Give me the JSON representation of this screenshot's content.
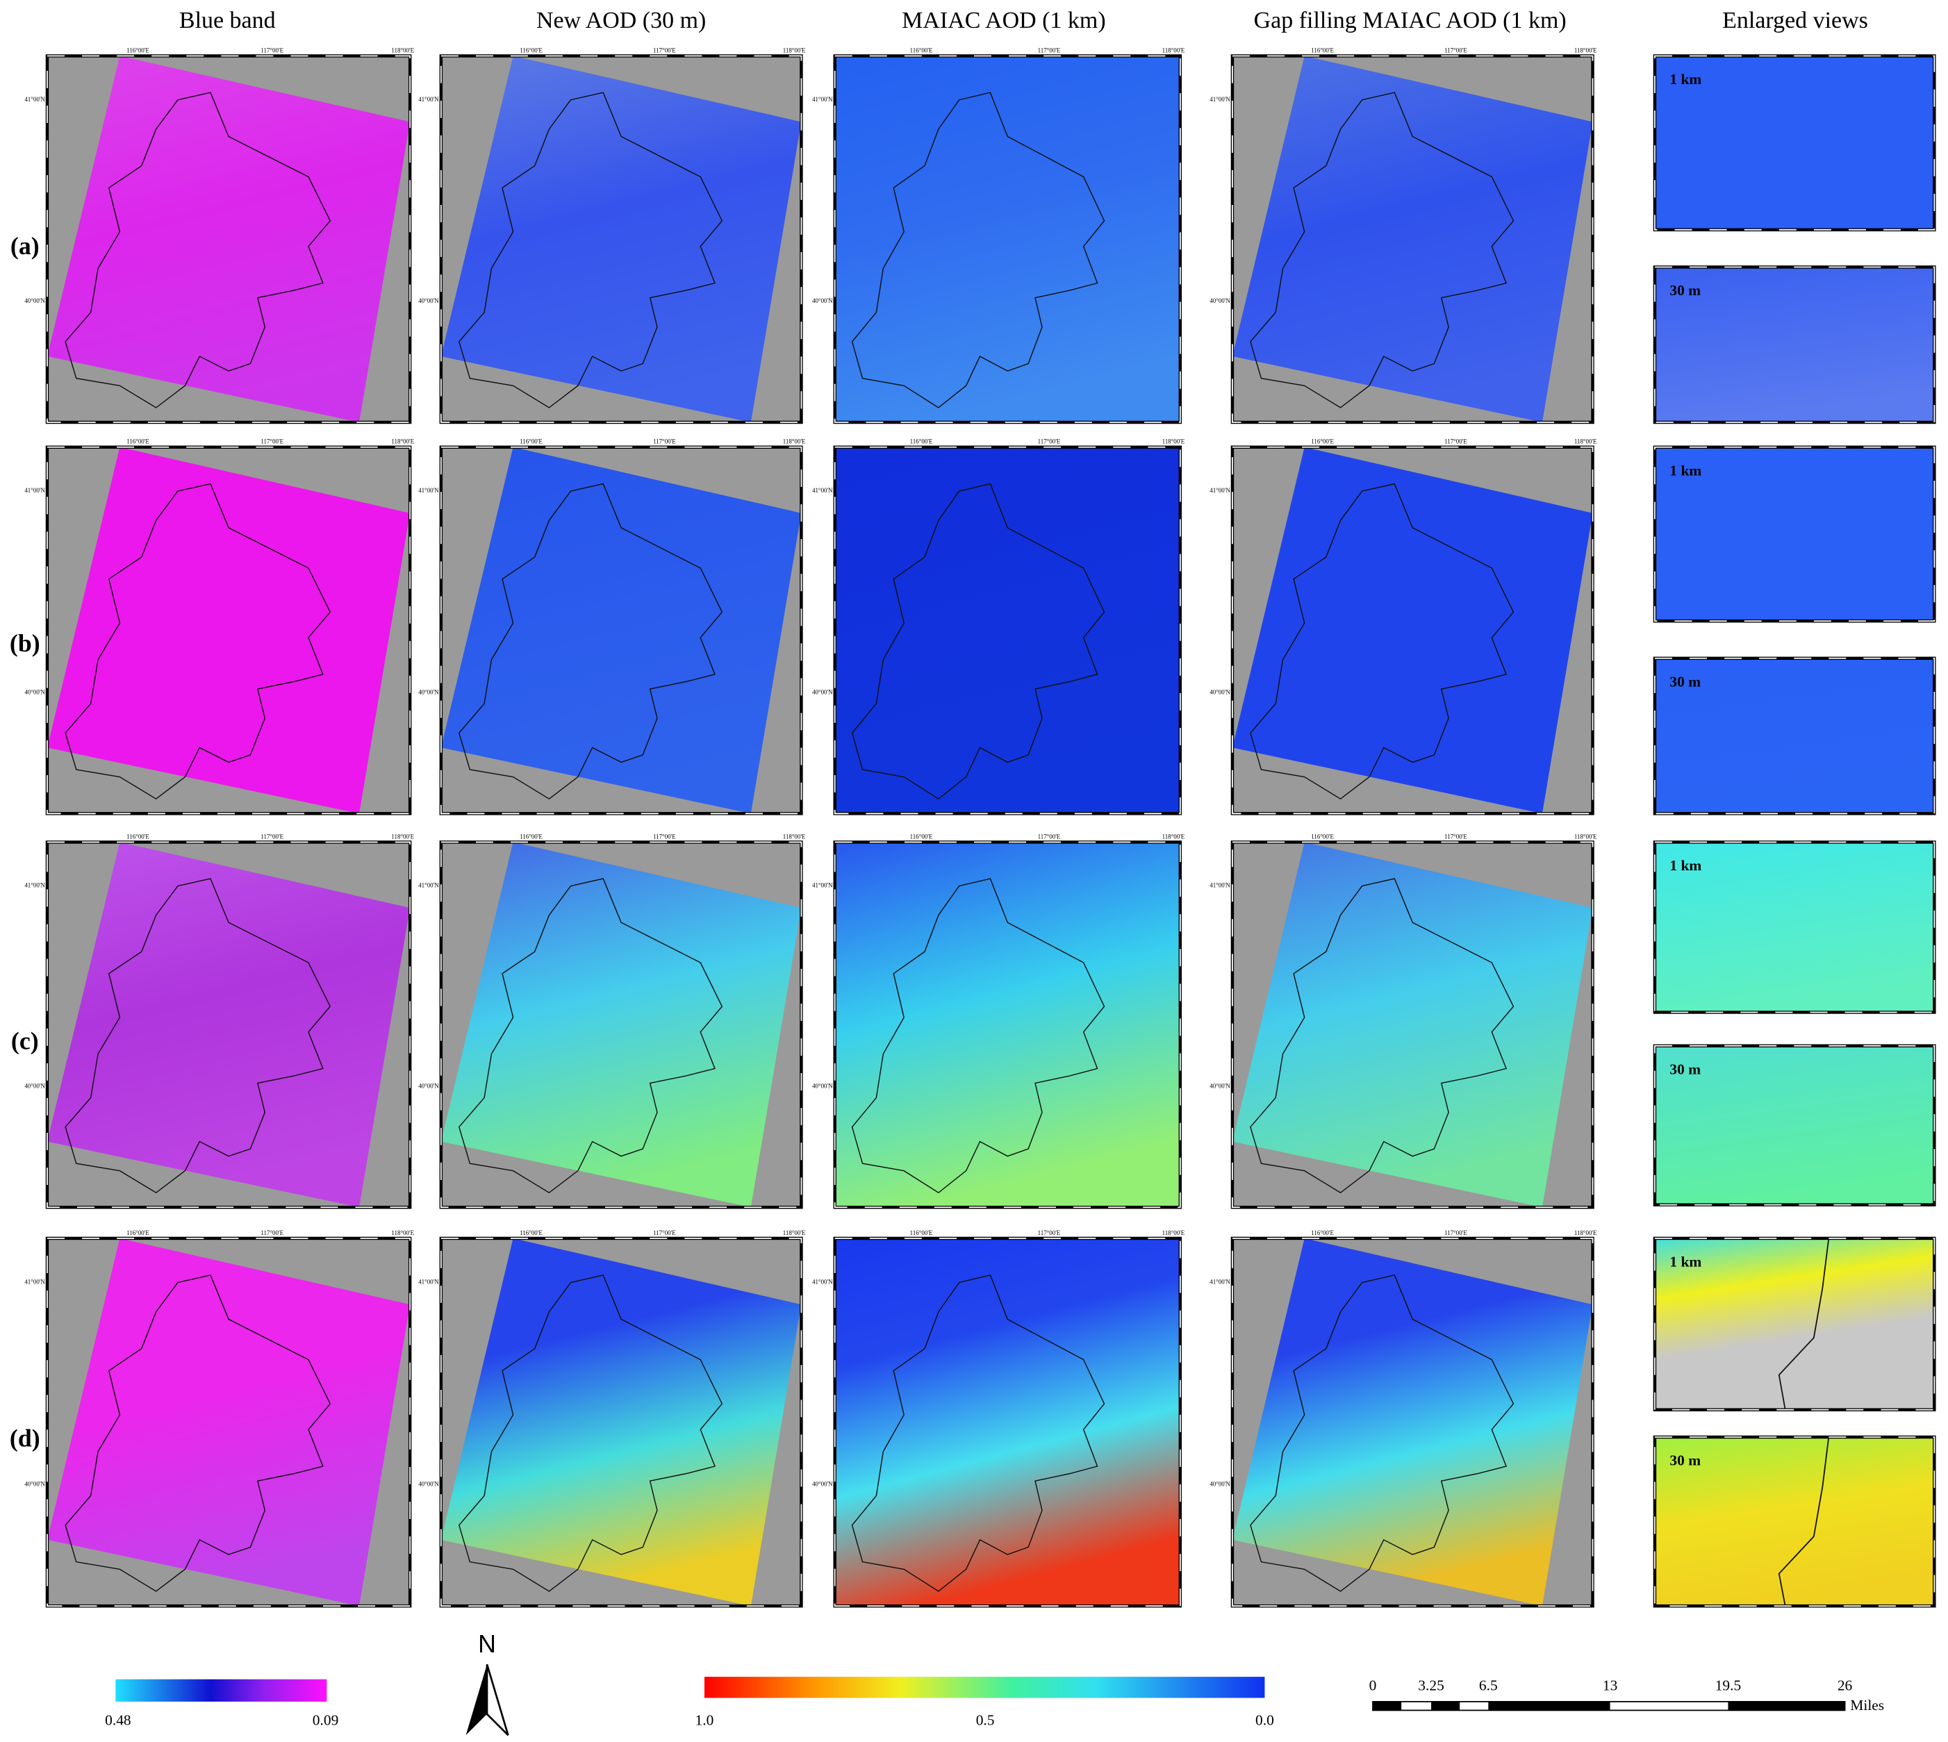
{
  "column_headers": [
    "Blue band",
    "New AOD (30 m)",
    "MAIAC AOD (1 km)",
    "Gap filling MAIAC AOD (1 km)",
    "Enlarged views"
  ],
  "row_labels": [
    "(a)",
    "(b)",
    "(c)",
    "(d)"
  ],
  "map_ticks": {
    "lon": [
      "116°00'E",
      "117°00'E",
      "118°00'E"
    ],
    "lat": [
      "41°00'N",
      "40°00'N"
    ]
  },
  "enlarged_labels": [
    "1 km",
    "30 m"
  ],
  "blue_band_colorbar": {
    "labels": [
      "0.48",
      "0.09"
    ]
  },
  "aod_colorbar": {
    "labels": [
      "1.0",
      "0.5",
      "0.0"
    ]
  },
  "north_arrow": "N",
  "scale_bar": {
    "labels": [
      "0",
      "3.25",
      "6.5",
      "13",
      "19.5",
      "26"
    ],
    "unit": "Miles"
  }
}
